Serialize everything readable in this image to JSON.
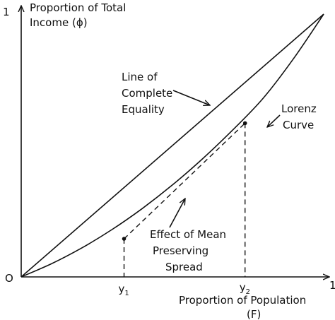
{
  "chart_data": {
    "type": "line",
    "ylabel_lines": [
      "Proportion of Total",
      "Income (ϕ)"
    ],
    "xlabel_lines": [
      "Proportion of Population",
      "(F)"
    ],
    "origin_label": "O",
    "x_max_label": "1",
    "y_max_label": "1",
    "xlim": [
      0,
      1
    ],
    "ylim": [
      0,
      1
    ],
    "grid": false,
    "series": [
      {
        "key": "equality",
        "name_lines": [
          "Line of",
          "Complete",
          "Equality"
        ],
        "x": [
          0,
          1
        ],
        "y": [
          0,
          1
        ]
      },
      {
        "key": "lorenz",
        "name_lines": [
          "Lorenz",
          "Curve"
        ],
        "x": [
          0,
          0.1,
          0.2,
          0.3,
          0.4,
          0.5,
          0.6,
          0.7,
          0.8,
          0.9,
          1.0
        ],
        "y": [
          0,
          0.05,
          0.11,
          0.18,
          0.26,
          0.35,
          0.45,
          0.56,
          0.68,
          0.83,
          1.0
        ]
      }
    ],
    "points": [
      {
        "key": "y1",
        "label": "y",
        "subscript": "1",
        "x": 0.34,
        "y": 0.145
      },
      {
        "key": "y2",
        "label": "y",
        "subscript": "2",
        "x": 0.74,
        "y": 0.585
      }
    ],
    "annotation": {
      "text_lines": [
        "Effect of Mean",
        "Preserving",
        "Spread"
      ]
    }
  }
}
